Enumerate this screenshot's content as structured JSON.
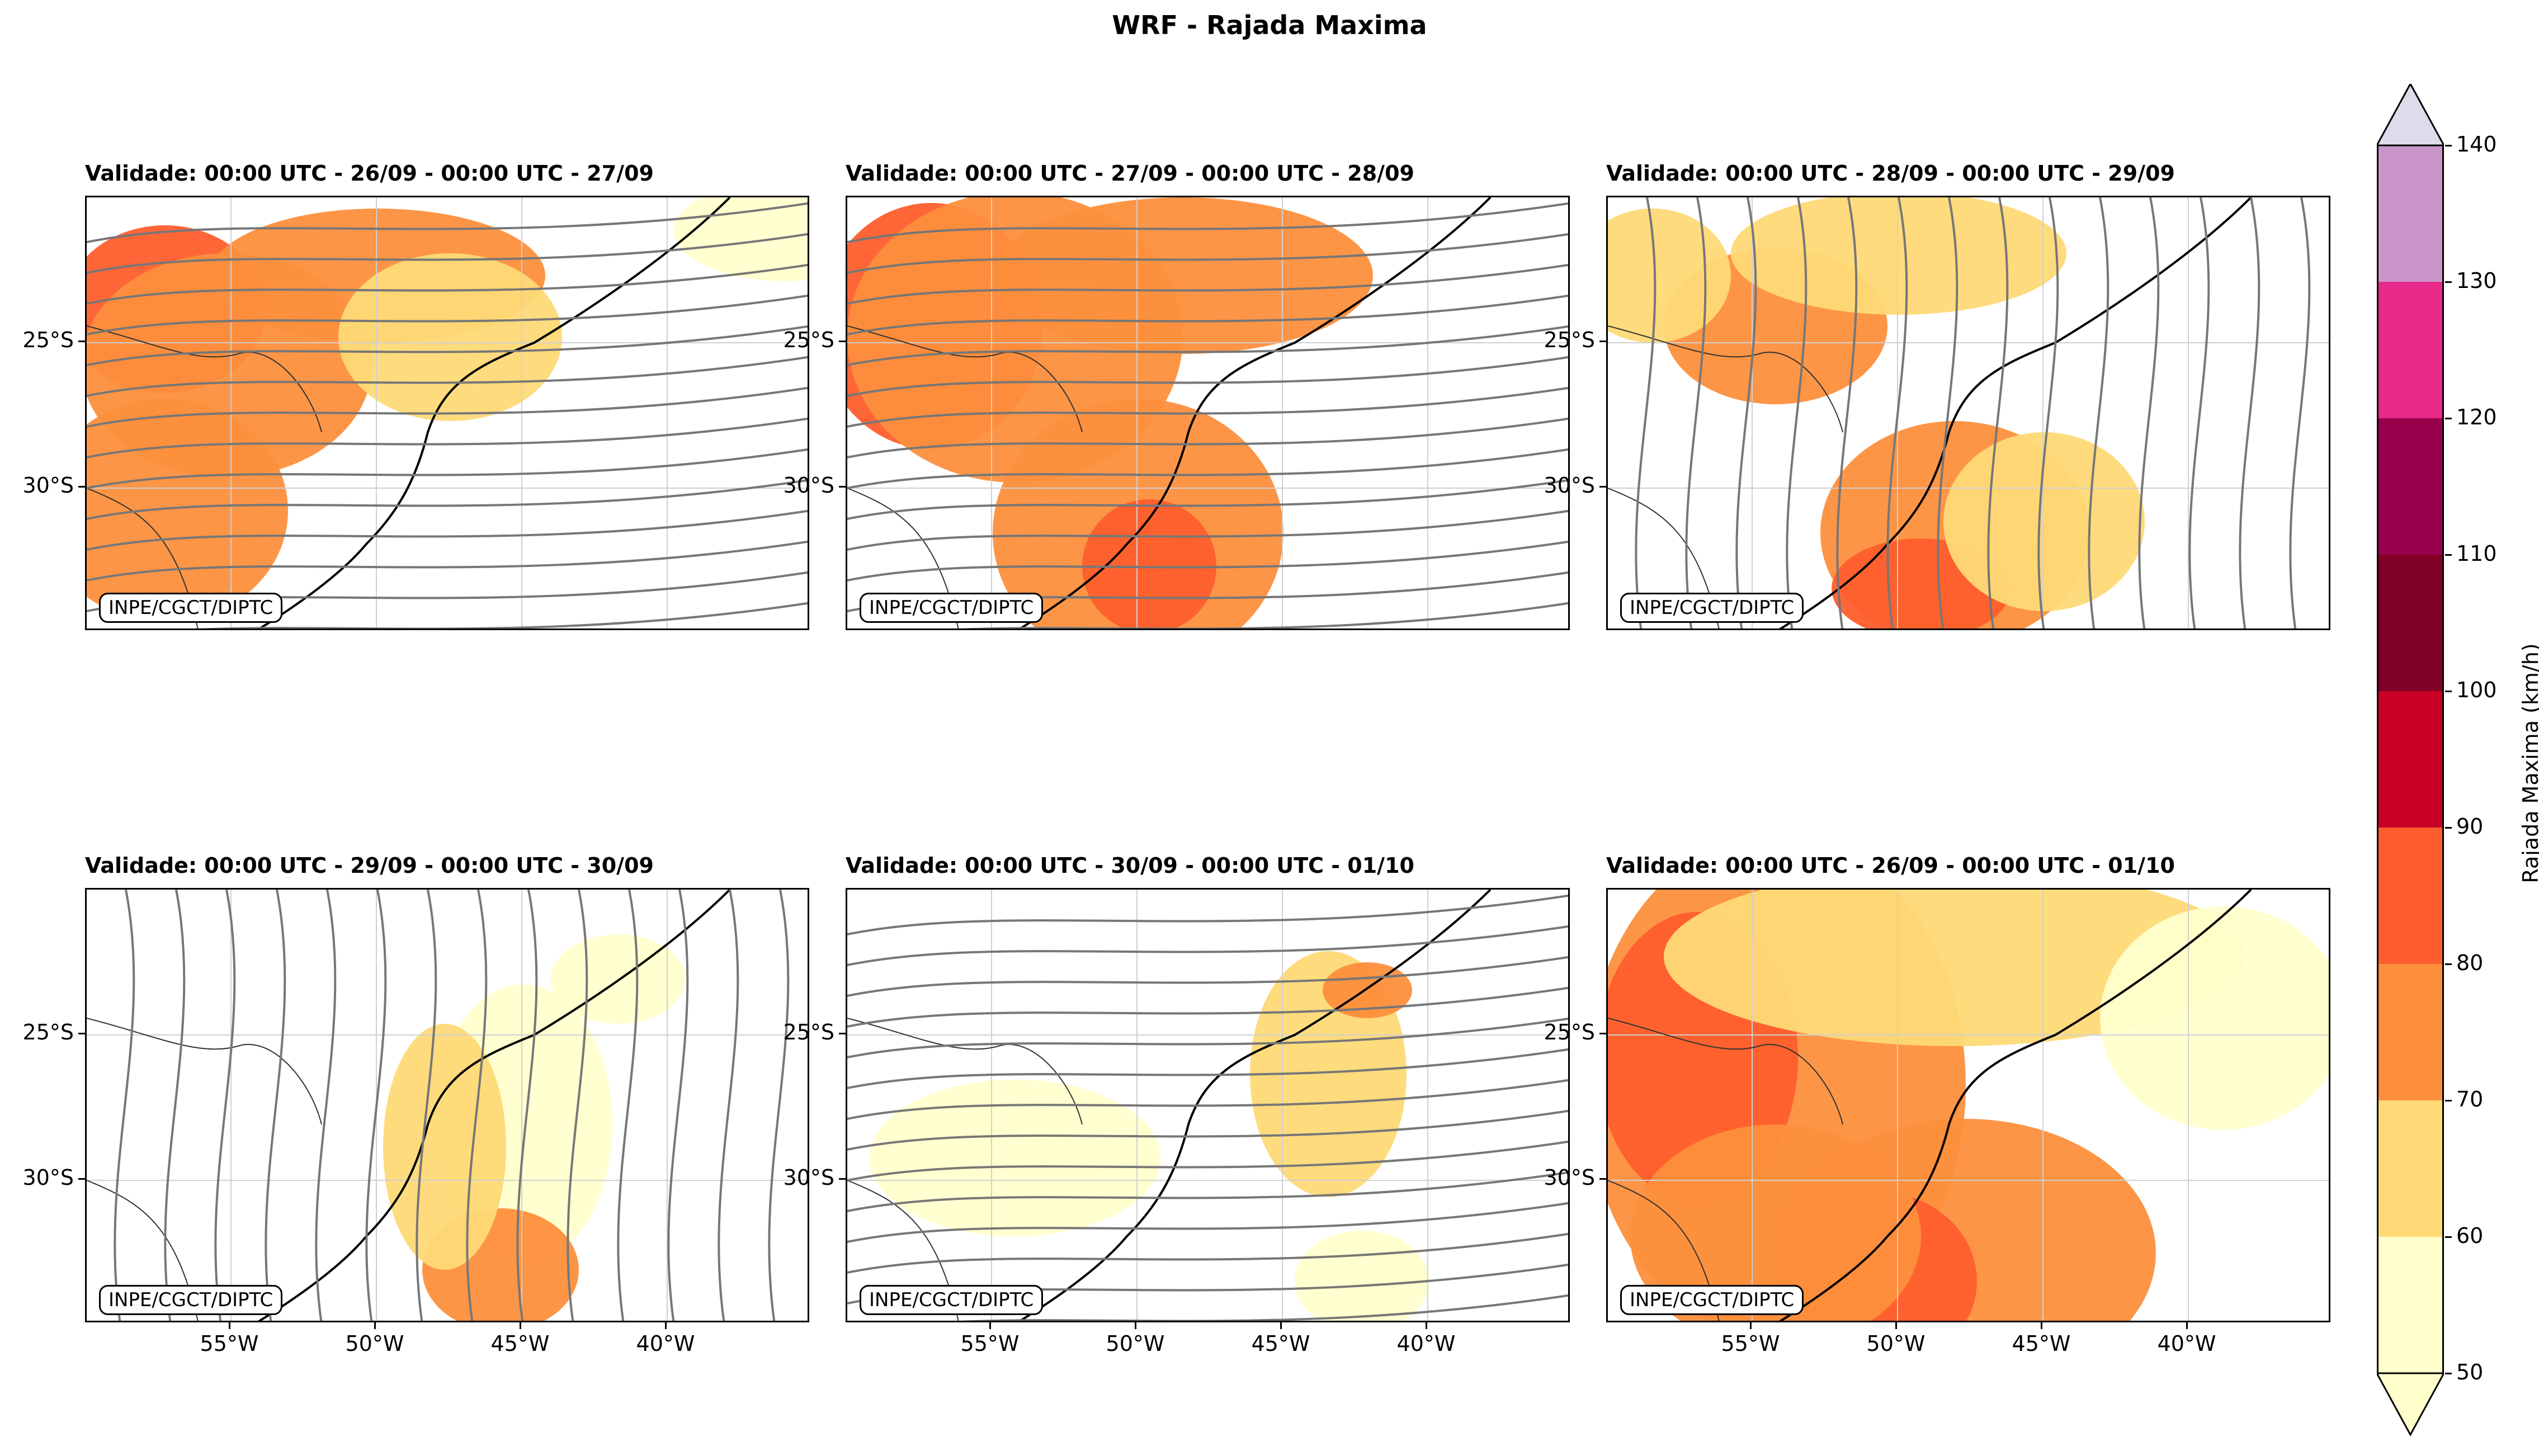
{
  "title": "WRF - Rajada Maxima",
  "credit": "INPE/CGCT/DIPTC",
  "panels": [
    {
      "title": "Validade: 00:00 UTC - 26/09 - 00:00 UTC - 27/09",
      "hot": [
        [
          140,
          200,
          180,
          150,
          "#fe5e2d"
        ],
        [
          250,
          300,
          260,
          200,
          "#fd8f3c"
        ],
        [
          520,
          140,
          300,
          120,
          "#fd8f3c"
        ],
        [
          140,
          560,
          220,
          200,
          "#fd8f3c"
        ],
        [
          650,
          250,
          200,
          150,
          "#fed976"
        ],
        [
          1250,
          60,
          200,
          90,
          "#ffffcc"
        ]
      ],
      "stream": "east"
    },
    {
      "title": "Validade: 00:00 UTC - 27/09 - 00:00 UTC - 28/09",
      "hot": [
        [
          150,
          230,
          200,
          220,
          "#fe5e2d"
        ],
        [
          300,
          250,
          300,
          260,
          "#fd8f3c"
        ],
        [
          600,
          140,
          340,
          140,
          "#fd8f3c"
        ],
        [
          520,
          600,
          260,
          240,
          "#fd8f3c"
        ],
        [
          540,
          660,
          120,
          120,
          "#fe5e2d"
        ]
      ],
      "stream": "east"
    },
    {
      "title": "Validade: 00:00 UTC - 28/09 - 00:00 UTC - 29/09",
      "hot": [
        [
          300,
          230,
          200,
          140,
          "#fd8f3c"
        ],
        [
          80,
          140,
          140,
          120,
          "#fed976"
        ],
        [
          520,
          100,
          300,
          110,
          "#fed976"
        ],
        [
          620,
          600,
          240,
          200,
          "#fd8f3c"
        ],
        [
          560,
          700,
          160,
          90,
          "#fe5e2d"
        ],
        [
          780,
          580,
          180,
          160,
          "#fed976"
        ]
      ],
      "stream": "north"
    },
    {
      "title": "Validade: 00:00 UTC - 29/09 - 00:00 UTC - 30/09",
      "hot": [
        [
          780,
          420,
          160,
          250,
          "#ffffcc"
        ],
        [
          740,
          680,
          140,
          110,
          "#fd8f3c"
        ],
        [
          640,
          460,
          110,
          220,
          "#fed976"
        ],
        [
          950,
          160,
          120,
          80,
          "#ffffcc"
        ]
      ],
      "stream": "north"
    },
    {
      "title": "Validade: 00:00 UTC - 30/09 - 00:00 UTC - 01/10",
      "hot": [
        [
          860,
          330,
          140,
          220,
          "#fed976"
        ],
        [
          300,
          480,
          260,
          140,
          "#ffffcc"
        ],
        [
          930,
          180,
          80,
          50,
          "#fd8f3c"
        ],
        [
          920,
          700,
          120,
          90,
          "#ffffcc"
        ]
      ],
      "stream": "east"
    },
    {
      "title": "Validade: 00:00 UTC - 26/09 - 00:00 UTC - 01/10",
      "hot": [
        [
          300,
          350,
          340,
          450,
          "#fd8f3c"
        ],
        [
          160,
          300,
          180,
          260,
          "#fe5e2d"
        ],
        [
          620,
          120,
          520,
          160,
          "#fed976"
        ],
        [
          640,
          650,
          340,
          240,
          "#fd8f3c"
        ],
        [
          480,
          700,
          180,
          160,
          "#fe5e2d"
        ],
        [
          300,
          620,
          260,
          200,
          "#fd8f3c"
        ],
        [
          1100,
          230,
          220,
          200,
          "#ffffcc"
        ]
      ],
      "stream": "none"
    }
  ],
  "y_ticks": [
    "25°S",
    "30°S"
  ],
  "x_ticks": [
    "55°W",
    "50°W",
    "45°W",
    "40°W"
  ],
  "colorbar": {
    "label": "Rajada Maxima (km/h)",
    "ticks": [
      "50",
      "60",
      "70",
      "80",
      "90",
      "100",
      "110",
      "120",
      "130",
      "140"
    ],
    "colors": [
      "#ffffcc",
      "#fed976",
      "#fd8f3c",
      "#fe5e2d",
      "#c80025",
      "#800026",
      "#99004c",
      "#e7298a",
      "#c994c7",
      "#e0dbeb"
    ],
    "extend": "both"
  }
}
